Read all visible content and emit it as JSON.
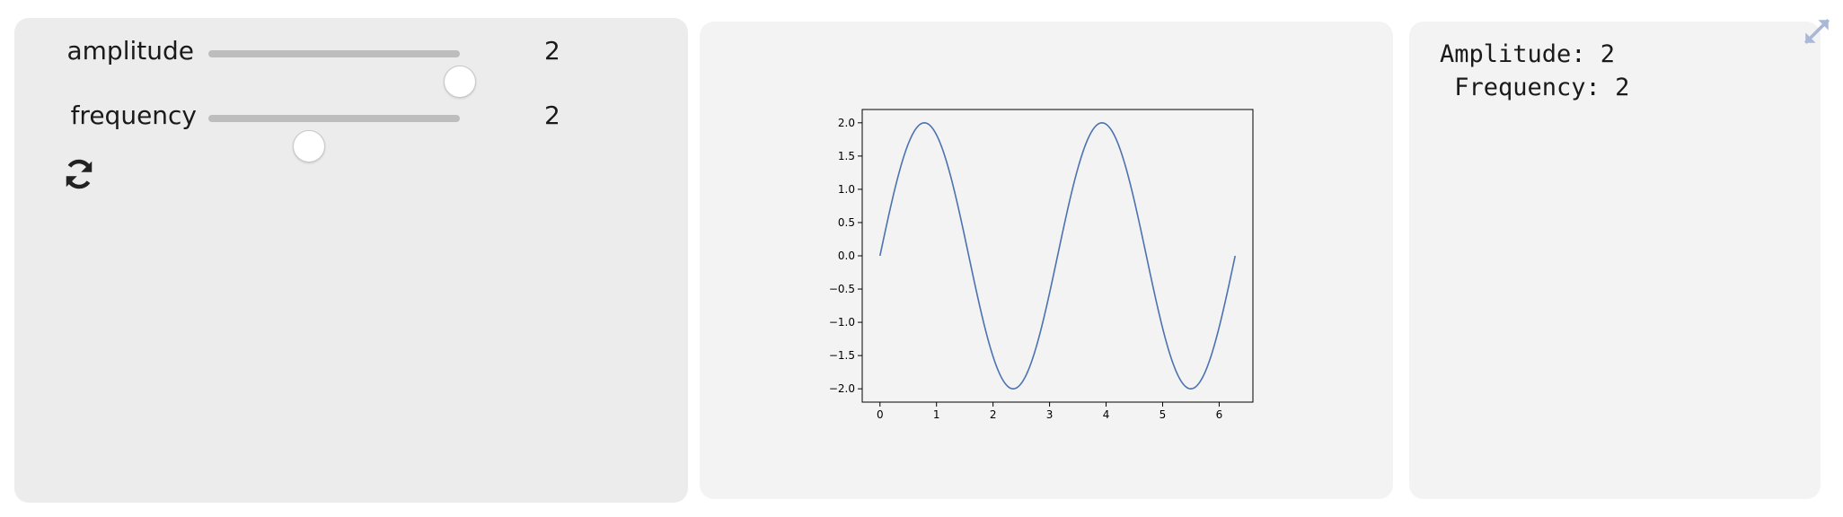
{
  "sliders": [
    {
      "label": "amplitude",
      "value": "2",
      "fraction": 1.0
    },
    {
      "label": "frequency",
      "value": "2",
      "fraction": 0.4
    }
  ],
  "refresh_icon": "refresh-icon",
  "expand_icon": "expand-icon",
  "output": {
    "line1": "Amplitude: 2",
    "line2": " Frequency: 2"
  },
  "colors": {
    "line": "#4c72b0",
    "controls_bg": "#ececec",
    "panel_bg": "#f3f3f3",
    "expand_icon": "#a9b8d8"
  },
  "chart_data": {
    "type": "line",
    "function": "2*sin(2*x)",
    "amplitude": 2,
    "frequency": 2,
    "x_range": [
      0,
      6.283
    ],
    "xlim": [
      -0.314,
      6.597
    ],
    "ylim": [
      -2.2,
      2.2
    ],
    "xticks": [
      "0",
      "1",
      "2",
      "3",
      "4",
      "5",
      "6"
    ],
    "yticks": [
      "2.0",
      "1.5",
      "1.0",
      "0.5",
      "0.0",
      "−0.5",
      "−1.0",
      "−1.5",
      "−2.0"
    ],
    "series": [
      {
        "x": [
          0,
          0.393,
          0.785,
          1.178,
          1.571,
          1.963,
          2.356,
          2.749,
          3.142,
          3.534,
          3.927,
          4.32,
          4.712,
          5.105,
          5.498,
          5.89,
          6.283
        ],
        "values": [
          0,
          1.414,
          2.0,
          1.414,
          0,
          -1.414,
          -2.0,
          -1.414,
          0,
          1.414,
          2.0,
          1.414,
          0,
          -1.414,
          -2.0,
          -1.414,
          0
        ]
      }
    ],
    "grid": false,
    "title": "",
    "xlabel": "",
    "ylabel": ""
  }
}
